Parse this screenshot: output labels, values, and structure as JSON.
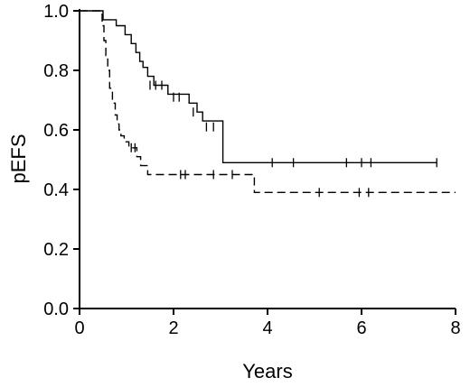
{
  "chart_data": {
    "type": "line",
    "title": "",
    "xlabel": "Years",
    "ylabel": "pEFS",
    "xlim": [
      0,
      8
    ],
    "ylim": [
      0,
      1
    ],
    "x_ticks": [
      "0",
      "2",
      "4",
      "6",
      "8"
    ],
    "y_ticks": [
      "0.0",
      "0.2",
      "0.4",
      "0.6",
      "0.8",
      "1.0"
    ],
    "grid": false,
    "legend": "none",
    "series": [
      {
        "style": "solid",
        "steps": [
          [
            0.0,
            1.0
          ],
          [
            0.5,
            1.0
          ],
          [
            0.5,
            0.97
          ],
          [
            0.78,
            0.97
          ],
          [
            0.78,
            0.95
          ],
          [
            0.97,
            0.95
          ],
          [
            0.97,
            0.92
          ],
          [
            1.1,
            0.92
          ],
          [
            1.1,
            0.89
          ],
          [
            1.2,
            0.89
          ],
          [
            1.2,
            0.86
          ],
          [
            1.28,
            0.86
          ],
          [
            1.28,
            0.83
          ],
          [
            1.35,
            0.83
          ],
          [
            1.35,
            0.81
          ],
          [
            1.45,
            0.81
          ],
          [
            1.45,
            0.78
          ],
          [
            1.58,
            0.78
          ],
          [
            1.58,
            0.75
          ],
          [
            1.88,
            0.75
          ],
          [
            1.88,
            0.72
          ],
          [
            2.33,
            0.72
          ],
          [
            2.33,
            0.69
          ],
          [
            2.5,
            0.69
          ],
          [
            2.5,
            0.66
          ],
          [
            2.62,
            0.66
          ],
          [
            2.62,
            0.63
          ],
          [
            3.05,
            0.63
          ],
          [
            3.05,
            0.49
          ],
          [
            7.6,
            0.49
          ]
        ],
        "censored": [
          [
            1.5,
            0.75
          ],
          [
            1.62,
            0.75
          ],
          [
            1.75,
            0.75
          ],
          [
            2.0,
            0.71
          ],
          [
            2.12,
            0.71
          ],
          [
            2.42,
            0.66
          ],
          [
            2.7,
            0.61
          ],
          [
            2.85,
            0.61
          ],
          [
            4.1,
            0.49
          ],
          [
            4.55,
            0.49
          ],
          [
            5.68,
            0.49
          ],
          [
            6.0,
            0.49
          ],
          [
            6.2,
            0.49
          ],
          [
            7.6,
            0.49
          ]
        ]
      },
      {
        "style": "dashed",
        "steps": [
          [
            0.0,
            1.0
          ],
          [
            0.48,
            1.0
          ],
          [
            0.48,
            0.95
          ],
          [
            0.52,
            0.95
          ],
          [
            0.52,
            0.9
          ],
          [
            0.56,
            0.9
          ],
          [
            0.56,
            0.85
          ],
          [
            0.6,
            0.85
          ],
          [
            0.6,
            0.8
          ],
          [
            0.64,
            0.8
          ],
          [
            0.64,
            0.74
          ],
          [
            0.7,
            0.74
          ],
          [
            0.7,
            0.69
          ],
          [
            0.76,
            0.69
          ],
          [
            0.76,
            0.65
          ],
          [
            0.8,
            0.65
          ],
          [
            0.8,
            0.62
          ],
          [
            0.84,
            0.62
          ],
          [
            0.84,
            0.6
          ],
          [
            0.88,
            0.6
          ],
          [
            0.88,
            0.58
          ],
          [
            0.95,
            0.58
          ],
          [
            0.95,
            0.56
          ],
          [
            1.05,
            0.56
          ],
          [
            1.05,
            0.54
          ],
          [
            1.22,
            0.54
          ],
          [
            1.22,
            0.51
          ],
          [
            1.3,
            0.51
          ],
          [
            1.3,
            0.48
          ],
          [
            1.45,
            0.48
          ],
          [
            1.45,
            0.45
          ],
          [
            3.72,
            0.45
          ],
          [
            3.72,
            0.39
          ],
          [
            8.0,
            0.39
          ]
        ],
        "censored": [
          [
            1.1,
            0.54
          ],
          [
            1.18,
            0.54
          ],
          [
            2.15,
            0.45
          ],
          [
            2.25,
            0.45
          ],
          [
            2.85,
            0.45
          ],
          [
            3.25,
            0.45
          ],
          [
            5.1,
            0.39
          ],
          [
            5.95,
            0.39
          ],
          [
            6.15,
            0.39
          ]
        ]
      }
    ]
  }
}
